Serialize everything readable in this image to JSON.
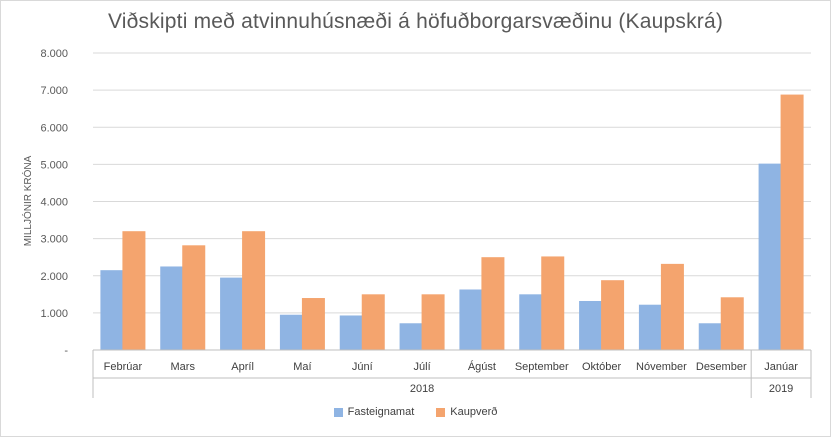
{
  "chart_data": {
    "type": "bar",
    "title": "Viðskipti með atvinnuhúsnæði á höfuðborgarsvæðinu (Kaupskrá)",
    "ylabel": "MILLJÓNIR KRÓNA",
    "xlabel": "",
    "ylim": [
      0,
      8000
    ],
    "yticks": [
      "-",
      "1.000",
      "2.000",
      "3.000",
      "4.000",
      "5.000",
      "6.000",
      "7.000",
      "8.000"
    ],
    "grid": true,
    "legend_position": "bottom",
    "categories": [
      "Febrúar",
      "Mars",
      "Apríl",
      "Maí",
      "Júní",
      "Júlí",
      "Ágúst",
      "September",
      "Október",
      "Nóvember",
      "Desember",
      "Janúar"
    ],
    "groups": [
      {
        "label": "2018",
        "count": 11
      },
      {
        "label": "2019",
        "count": 1
      }
    ],
    "series": [
      {
        "name": "Fasteignamat",
        "color": "#8fb4e3",
        "values": [
          2150,
          2250,
          1950,
          950,
          930,
          720,
          1630,
          1500,
          1320,
          1220,
          720,
          5020
        ]
      },
      {
        "name": "Kaupverð",
        "color": "#f4a46e",
        "values": [
          3200,
          2820,
          3200,
          1400,
          1500,
          1500,
          2500,
          2520,
          1880,
          2320,
          1420,
          6880
        ]
      }
    ]
  }
}
